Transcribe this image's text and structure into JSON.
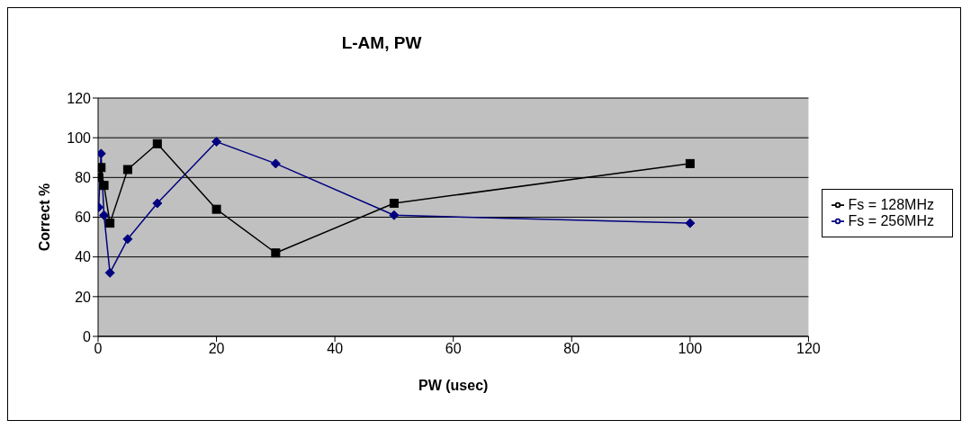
{
  "chart_data": {
    "type": "line",
    "title": "L-AM, PW",
    "xlabel": "PW (usec)",
    "ylabel": "Correct %",
    "x": [
      0.1,
      0.5,
      1,
      2,
      5,
      10,
      20,
      30,
      50,
      100
    ],
    "series": [
      {
        "name": "Fs = 256MHz",
        "color": "#000080",
        "marker": "diamond",
        "values": [
          65,
          92,
          61,
          32,
          49,
          67,
          98,
          87,
          61,
          57
        ]
      },
      {
        "name": "Fs = 128MHz",
        "color": "#000000",
        "marker": "square",
        "values": [
          80,
          85,
          76,
          57,
          84,
          97,
          64,
          42,
          67,
          87
        ]
      }
    ],
    "xlim": [
      0,
      120
    ],
    "xticks": [
      0,
      20,
      40,
      60,
      80,
      100,
      120
    ],
    "ylim": [
      0,
      120
    ],
    "yticks": [
      0,
      20,
      40,
      60,
      80,
      100,
      120
    ],
    "grid": "y",
    "legend": "right"
  }
}
